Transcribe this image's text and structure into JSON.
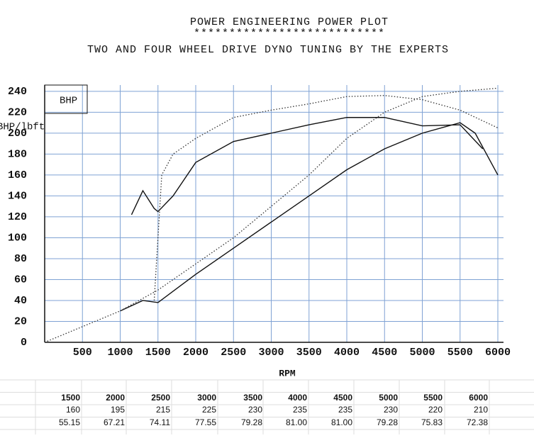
{
  "chart_data": {
    "type": "line",
    "title": "POWER ENGINEERING POWER PLOT",
    "title_rule": "***************************",
    "subtitle": "TWO AND FOUR WHEEL DRIVE DYNO TUNING BY THE EXPERTS",
    "legend_label": "BHP",
    "y_label": "BHP/lbft",
    "x_label": "RPM",
    "xlim": [
      0,
      6075
    ],
    "ylim": [
      0,
      246
    ],
    "xticks": [
      500,
      1000,
      1500,
      2000,
      2500,
      3000,
      3500,
      4000,
      4500,
      5000,
      5500,
      6000
    ],
    "yticks": [
      0,
      20,
      40,
      60,
      80,
      100,
      120,
      140,
      160,
      180,
      200,
      220,
      240
    ],
    "grid": true,
    "series": [
      {
        "color": "#111111",
        "style": "solid",
        "x": [
          1150,
          1300,
          1450,
          1500,
          1700,
          2000,
          2500,
          3000,
          3500,
          4000,
          4500,
          5000,
          5500,
          5800
        ],
        "values": [
          122,
          145,
          128,
          125,
          140,
          172,
          192,
          200,
          208,
          215,
          215,
          207,
          208,
          185
        ]
      },
      {
        "color": "#111111",
        "style": "solid",
        "x": [
          1000,
          1300,
          1500,
          2000,
          2500,
          3000,
          3500,
          4000,
          4500,
          5000,
          5500,
          5700,
          6000
        ],
        "values": [
          30,
          40,
          38,
          65,
          90,
          115,
          140,
          165,
          185,
          200,
          210,
          200,
          160
        ]
      },
      {
        "color": "#333333",
        "style": "dotted",
        "x": [
          0,
          500,
          1000,
          1500,
          2000,
          2500,
          3000,
          3500,
          4000,
          4500,
          5000,
          5500,
          6000
        ],
        "values": [
          0,
          15,
          30,
          50,
          75,
          100,
          130,
          160,
          195,
          220,
          235,
          240,
          243
        ]
      },
      {
        "color": "#333333",
        "style": "dotted",
        "x": [
          1450,
          1550,
          1700,
          2000,
          2500,
          3000,
          3500,
          4000,
          4500,
          5000,
          5500,
          6000
        ],
        "values": [
          40,
          160,
          180,
          195,
          215,
          222,
          228,
          235,
          236,
          232,
          222,
          205
        ]
      }
    ]
  },
  "table": {
    "rows": [
      [
        "1500",
        "2000",
        "2500",
        "3000",
        "3500",
        "4000",
        "4500",
        "5000",
        "5500",
        "6000"
      ],
      [
        "160",
        "195",
        "215",
        "225",
        "230",
        "235",
        "235",
        "230",
        "220",
        "210"
      ],
      [
        "55.15",
        "67.21",
        "74.11",
        "77.55",
        "79.28",
        "81.00",
        "81.00",
        "79.28",
        "75.83",
        "72.38"
      ]
    ]
  }
}
